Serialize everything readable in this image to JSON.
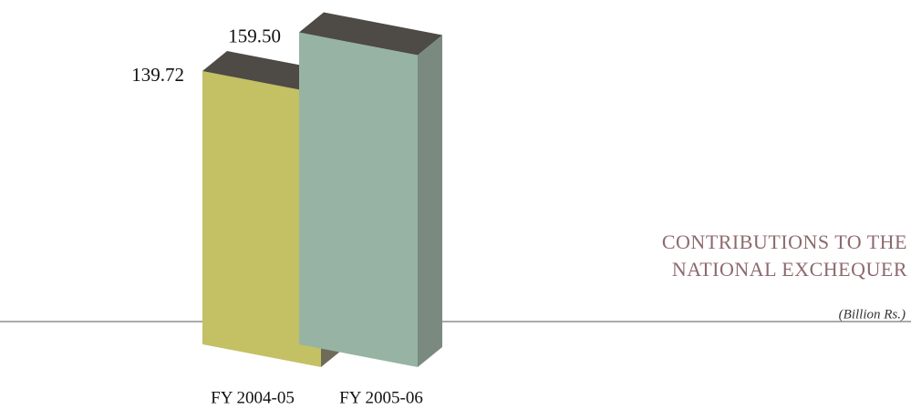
{
  "chart_data": {
    "type": "bar3d",
    "title_lines": [
      "CONTRIBUTIONS TO THE",
      "NATIONAL EXCHEQUER"
    ],
    "subtitle": "(Billion Rs.)",
    "categories": [
      "FY 2004-05",
      "FY 2005-06"
    ],
    "values": [
      139.72,
      159.5
    ],
    "value_labels": [
      "139.72",
      "159.50"
    ],
    "colors": [
      "#c4c064",
      "#97b3a3"
    ]
  }
}
